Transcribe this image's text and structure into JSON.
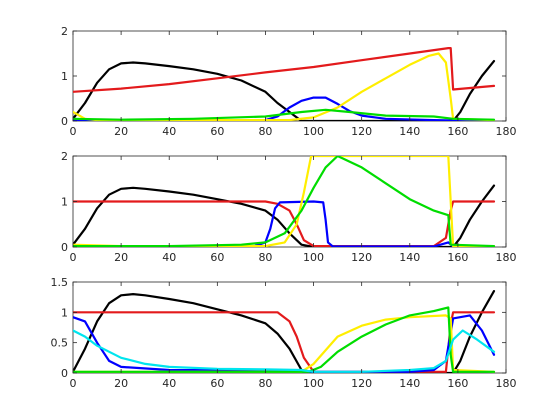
{
  "chart_data": [
    {
      "type": "line",
      "xlim": [
        0,
        180
      ],
      "ylim": [
        0,
        2
      ],
      "xticks": [
        0,
        20,
        40,
        60,
        80,
        100,
        120,
        140,
        160,
        180
      ],
      "yticks": [
        0,
        1,
        2
      ],
      "xtick_labels": [
        "0",
        "20",
        "40",
        "60",
        "80",
        "100",
        "120",
        "140",
        "160",
        "180"
      ],
      "ytick_labels": [
        "0",
        "1",
        "2"
      ],
      "series": [
        {
          "color": "#000000",
          "points": [
            [
              0,
              0.05
            ],
            [
              5,
              0.4
            ],
            [
              10,
              0.85
            ],
            [
              15,
              1.15
            ],
            [
              20,
              1.28
            ],
            [
              25,
              1.3
            ],
            [
              30,
              1.28
            ],
            [
              40,
              1.22
            ],
            [
              50,
              1.15
            ],
            [
              60,
              1.05
            ],
            [
              70,
              0.9
            ],
            [
              80,
              0.65
            ],
            [
              85,
              0.4
            ],
            [
              90,
              0.2
            ],
            [
              95,
              0
            ],
            [
              150,
              0
            ],
            [
              158,
              0
            ],
            [
              161,
              0.2
            ],
            [
              165,
              0.6
            ],
            [
              170,
              1.0
            ],
            [
              175,
              1.33
            ]
          ]
        },
        {
          "color": "#e31a1c",
          "points": [
            [
              0,
              0.65
            ],
            [
              20,
              0.72
            ],
            [
              40,
              0.82
            ],
            [
              60,
              0.95
            ],
            [
              80,
              1.08
            ],
            [
              100,
              1.2
            ],
            [
              120,
              1.35
            ],
            [
              140,
              1.5
            ],
            [
              156,
              1.62
            ],
            [
              157,
              1.62
            ],
            [
              158,
              0.7
            ],
            [
              175,
              0.78
            ]
          ]
        },
        {
          "color": "#0000ff",
          "points": [
            [
              0,
              0.02
            ],
            [
              80,
              0.02
            ],
            [
              85,
              0.1
            ],
            [
              90,
              0.3
            ],
            [
              95,
              0.45
            ],
            [
              100,
              0.52
            ],
            [
              105,
              0.52
            ],
            [
              110,
              0.38
            ],
            [
              115,
              0.22
            ],
            [
              120,
              0.12
            ],
            [
              130,
              0.05
            ],
            [
              150,
              0.02
            ],
            [
              158,
              0.01
            ],
            [
              175,
              0.01
            ]
          ]
        },
        {
          "color": "#ffee00",
          "points": [
            [
              0,
              0.2
            ],
            [
              5,
              0.05
            ],
            [
              10,
              0.02
            ],
            [
              90,
              0.02
            ],
            [
              100,
              0.08
            ],
            [
              110,
              0.3
            ],
            [
              120,
              0.65
            ],
            [
              130,
              0.95
            ],
            [
              140,
              1.25
            ],
            [
              148,
              1.45
            ],
            [
              152,
              1.5
            ],
            [
              155,
              1.3
            ],
            [
              157,
              0.5
            ],
            [
              158,
              0.05
            ],
            [
              175,
              0.02
            ]
          ]
        },
        {
          "color": "#00dd00",
          "points": [
            [
              0,
              0.05
            ],
            [
              20,
              0.03
            ],
            [
              50,
              0.05
            ],
            [
              80,
              0.1
            ],
            [
              95,
              0.2
            ],
            [
              105,
              0.25
            ],
            [
              115,
              0.2
            ],
            [
              130,
              0.12
            ],
            [
              150,
              0.1
            ],
            [
              158,
              0.05
            ],
            [
              175,
              0.03
            ]
          ]
        }
      ]
    },
    {
      "type": "line",
      "xlim": [
        0,
        180
      ],
      "ylim": [
        0,
        2
      ],
      "xticks": [
        0,
        20,
        40,
        60,
        80,
        100,
        120,
        140,
        160,
        180
      ],
      "yticks": [
        0,
        1,
        2
      ],
      "xtick_labels": [
        "0",
        "20",
        "40",
        "60",
        "80",
        "100",
        "120",
        "140",
        "160",
        "180"
      ],
      "ytick_labels": [
        "0",
        "1",
        "2"
      ],
      "series": [
        {
          "color": "#000000",
          "points": [
            [
              0,
              0.05
            ],
            [
              5,
              0.4
            ],
            [
              10,
              0.85
            ],
            [
              15,
              1.15
            ],
            [
              20,
              1.28
            ],
            [
              25,
              1.3
            ],
            [
              30,
              1.28
            ],
            [
              40,
              1.22
            ],
            [
              50,
              1.15
            ],
            [
              60,
              1.05
            ],
            [
              70,
              0.95
            ],
            [
              80,
              0.8
            ],
            [
              85,
              0.6
            ],
            [
              90,
              0.3
            ],
            [
              95,
              0.05
            ],
            [
              100,
              0
            ],
            [
              150,
              0
            ],
            [
              158,
              0
            ],
            [
              161,
              0.2
            ],
            [
              165,
              0.6
            ],
            [
              170,
              1.0
            ],
            [
              175,
              1.35
            ]
          ]
        },
        {
          "color": "#e31a1c",
          "points": [
            [
              0,
              1.0
            ],
            [
              80,
              1.0
            ],
            [
              85,
              0.95
            ],
            [
              90,
              0.8
            ],
            [
              93,
              0.5
            ],
            [
              96,
              0.15
            ],
            [
              100,
              0.02
            ],
            [
              150,
              0.02
            ],
            [
              155,
              0.2
            ],
            [
              157,
              0.8
            ],
            [
              158,
              1.0
            ],
            [
              175,
              1.0
            ]
          ]
        },
        {
          "color": "#0000ff",
          "points": [
            [
              0,
              0.01
            ],
            [
              75,
              0.01
            ],
            [
              80,
              0.1
            ],
            [
              82,
              0.4
            ],
            [
              84,
              0.85
            ],
            [
              86,
              0.98
            ],
            [
              100,
              1.0
            ],
            [
              104,
              0.98
            ],
            [
              105,
              0.6
            ],
            [
              106,
              0.1
            ],
            [
              108,
              0.01
            ],
            [
              150,
              0.01
            ],
            [
              156,
              0.1
            ],
            [
              158,
              0.01
            ],
            [
              175,
              0.01
            ]
          ]
        },
        {
          "color": "#ffee00",
          "points": [
            [
              0,
              0.05
            ],
            [
              20,
              0.02
            ],
            [
              80,
              0.02
            ],
            [
              88,
              0.1
            ],
            [
              93,
              0.5
            ],
            [
              96,
              1.2
            ],
            [
              99,
              2.0
            ],
            [
              155,
              2.0
            ],
            [
              156,
              2.0
            ],
            [
              157,
              1.0
            ],
            [
              158,
              0.02
            ],
            [
              175,
              0.02
            ]
          ]
        },
        {
          "color": "#00dd00",
          "points": [
            [
              0,
              0.02
            ],
            [
              40,
              0.02
            ],
            [
              70,
              0.05
            ],
            [
              80,
              0.1
            ],
            [
              88,
              0.3
            ],
            [
              95,
              0.8
            ],
            [
              100,
              1.3
            ],
            [
              105,
              1.75
            ],
            [
              110,
              2.0
            ],
            [
              120,
              1.75
            ],
            [
              130,
              1.4
            ],
            [
              140,
              1.05
            ],
            [
              150,
              0.8
            ],
            [
              156,
              0.7
            ],
            [
              157,
              0.05
            ],
            [
              175,
              0.02
            ]
          ]
        }
      ]
    },
    {
      "type": "line",
      "xlim": [
        0,
        180
      ],
      "ylim": [
        0,
        1.5
      ],
      "xticks": [
        0,
        20,
        40,
        60,
        80,
        100,
        120,
        140,
        160,
        180
      ],
      "yticks": [
        0,
        0.5,
        1,
        1.5
      ],
      "xtick_labels": [
        "0",
        "20",
        "40",
        "60",
        "80",
        "100",
        "120",
        "140",
        "160",
        "180"
      ],
      "ytick_labels": [
        "0",
        "0.5",
        "1",
        "1.5"
      ],
      "series": [
        {
          "color": "#000000",
          "points": [
            [
              0,
              0.02
            ],
            [
              5,
              0.4
            ],
            [
              10,
              0.85
            ],
            [
              15,
              1.15
            ],
            [
              20,
              1.28
            ],
            [
              25,
              1.3
            ],
            [
              30,
              1.28
            ],
            [
              40,
              1.22
            ],
            [
              50,
              1.15
            ],
            [
              60,
              1.05
            ],
            [
              70,
              0.95
            ],
            [
              80,
              0.82
            ],
            [
              85,
              0.65
            ],
            [
              90,
              0.4
            ],
            [
              95,
              0.05
            ],
            [
              100,
              0
            ],
            [
              150,
              0
            ],
            [
              158,
              0
            ],
            [
              161,
              0.2
            ],
            [
              165,
              0.6
            ],
            [
              170,
              1.0
            ],
            [
              175,
              1.35
            ]
          ]
        },
        {
          "color": "#e31a1c",
          "points": [
            [
              0,
              1.0
            ],
            [
              85,
              1.0
            ],
            [
              90,
              0.85
            ],
            [
              93,
              0.6
            ],
            [
              96,
              0.25
            ],
            [
              100,
              0.02
            ],
            [
              155,
              0.02
            ],
            [
              157,
              0.8
            ],
            [
              158,
              1.0
            ],
            [
              175,
              1.0
            ]
          ]
        },
        {
          "color": "#0000ff",
          "points": [
            [
              0,
              0.92
            ],
            [
              5,
              0.85
            ],
            [
              10,
              0.5
            ],
            [
              15,
              0.2
            ],
            [
              20,
              0.1
            ],
            [
              40,
              0.05
            ],
            [
              80,
              0.04
            ],
            [
              100,
              0.02
            ],
            [
              140,
              0.02
            ],
            [
              150,
              0.05
            ],
            [
              155,
              0.2
            ],
            [
              158,
              0.9
            ],
            [
              165,
              0.95
            ],
            [
              170,
              0.7
            ],
            [
              175,
              0.3
            ]
          ]
        },
        {
          "color": "#ffee00",
          "points": [
            [
              0,
              0.02
            ],
            [
              95,
              0.02
            ],
            [
              100,
              0.15
            ],
            [
              110,
              0.6
            ],
            [
              120,
              0.78
            ],
            [
              130,
              0.88
            ],
            [
              140,
              0.92
            ],
            [
              155,
              0.95
            ],
            [
              157,
              0.9
            ],
            [
              158,
              0.05
            ],
            [
              175,
              0.02
            ]
          ]
        },
        {
          "color": "#00dd00",
          "points": [
            [
              0,
              0.02
            ],
            [
              98,
              0.02
            ],
            [
              103,
              0.1
            ],
            [
              110,
              0.35
            ],
            [
              120,
              0.6
            ],
            [
              130,
              0.8
            ],
            [
              140,
              0.95
            ],
            [
              150,
              1.02
            ],
            [
              156,
              1.08
            ],
            [
              157,
              0.3
            ],
            [
              158,
              0.02
            ],
            [
              175,
              0.02
            ]
          ]
        },
        {
          "color": "#00e5ee",
          "points": [
            [
              0,
              0.7
            ],
            [
              5,
              0.6
            ],
            [
              10,
              0.45
            ],
            [
              20,
              0.25
            ],
            [
              30,
              0.15
            ],
            [
              40,
              0.1
            ],
            [
              60,
              0.07
            ],
            [
              80,
              0.06
            ],
            [
              95,
              0.05
            ],
            [
              100,
              0.02
            ],
            [
              120,
              0.02
            ],
            [
              140,
              0.05
            ],
            [
              150,
              0.08
            ],
            [
              155,
              0.2
            ],
            [
              158,
              0.55
            ],
            [
              162,
              0.7
            ],
            [
              168,
              0.55
            ],
            [
              175,
              0.35
            ]
          ]
        }
      ]
    }
  ]
}
